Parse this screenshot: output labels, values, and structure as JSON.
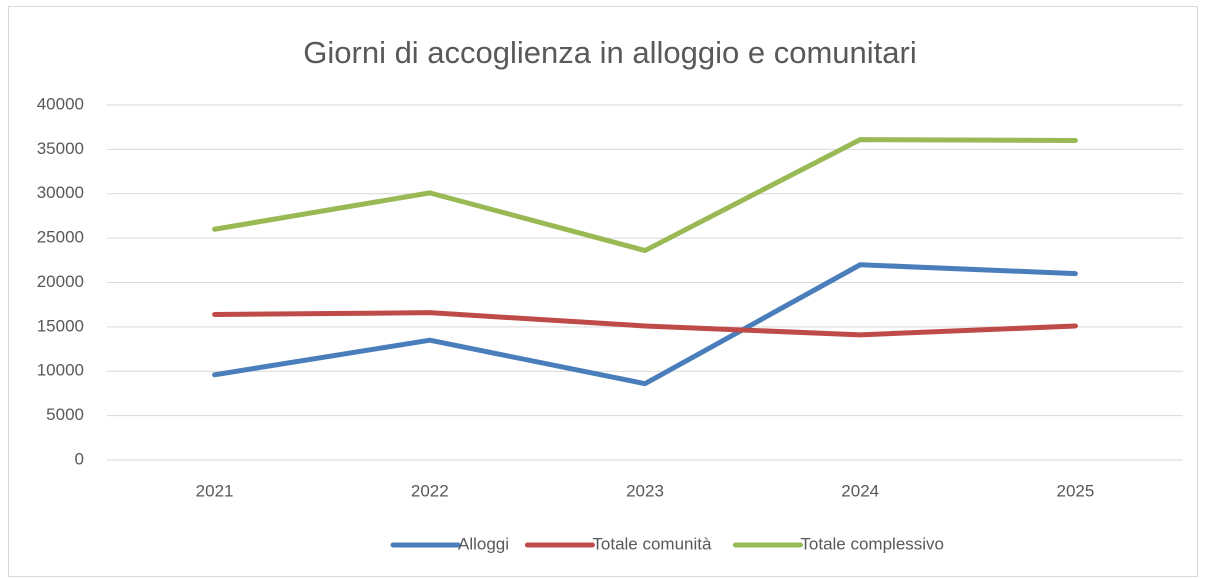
{
  "chart_data": {
    "type": "line",
    "title": "Giorni di accoglienza in alloggio e comunitari",
    "categories": [
      "2021",
      "2022",
      "2023",
      "2024",
      "2025"
    ],
    "series": [
      {
        "name": "Alloggi",
        "color": "#4a7ebb",
        "values": [
          9600,
          13500,
          8600,
          22000,
          21000
        ]
      },
      {
        "name": "Totale comunità",
        "color": "#be4b48",
        "values": [
          16400,
          16600,
          15100,
          14100,
          15100
        ]
      },
      {
        "name": "Totale complessivo",
        "color": "#98b954",
        "values": [
          26000,
          30100,
          23600,
          36100,
          36000
        ]
      }
    ],
    "ylim": [
      0,
      40000
    ],
    "yticks": [
      0,
      5000,
      10000,
      15000,
      20000,
      25000,
      30000,
      35000,
      40000
    ],
    "grid": true,
    "legend": "bottom"
  }
}
